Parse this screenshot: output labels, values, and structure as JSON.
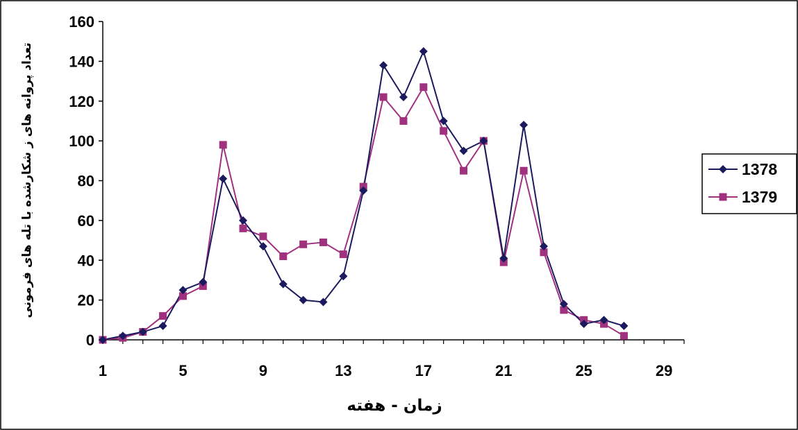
{
  "chart_data": {
    "type": "line",
    "title": "",
    "xlabel": "زمان - هفته",
    "ylabel": "تعداد پروانه های ز شکارشده با تله های فرمونی",
    "x": [
      1,
      2,
      3,
      4,
      5,
      6,
      7,
      8,
      9,
      10,
      11,
      12,
      13,
      14,
      15,
      16,
      17,
      18,
      19,
      20,
      21,
      22,
      23,
      24,
      25,
      26,
      27
    ],
    "x_ticks": [
      1,
      5,
      9,
      13,
      17,
      21,
      25,
      29
    ],
    "x_tick_labels": [
      "1",
      "5",
      "9",
      "13",
      "17",
      "21",
      "25",
      "29"
    ],
    "xlim": [
      1,
      30
    ],
    "y_ticks": [
      0,
      20,
      40,
      60,
      80,
      100,
      120,
      140,
      160
    ],
    "y_tick_labels": [
      "0",
      "20",
      "40",
      "60",
      "80",
      "100",
      "120",
      "140",
      "160"
    ],
    "ylim": [
      0,
      160
    ],
    "grid": false,
    "legend_position": "right",
    "series": [
      {
        "name": "1378",
        "color": "#1b1a5e",
        "marker": "diamond",
        "values": [
          0,
          2,
          4,
          7,
          25,
          29,
          81,
          60,
          47,
          28,
          20,
          19,
          32,
          75,
          138,
          122,
          145,
          110,
          95,
          100,
          41,
          108,
          47,
          18,
          8,
          10,
          7
        ]
      },
      {
        "name": "1379",
        "color": "#a0317e",
        "marker": "square",
        "values": [
          0,
          1,
          4,
          12,
          22,
          27,
          98,
          56,
          52,
          42,
          48,
          49,
          43,
          77,
          122,
          110,
          127,
          105,
          85,
          100,
          39,
          85,
          44,
          15,
          10,
          8,
          2
        ]
      }
    ]
  }
}
